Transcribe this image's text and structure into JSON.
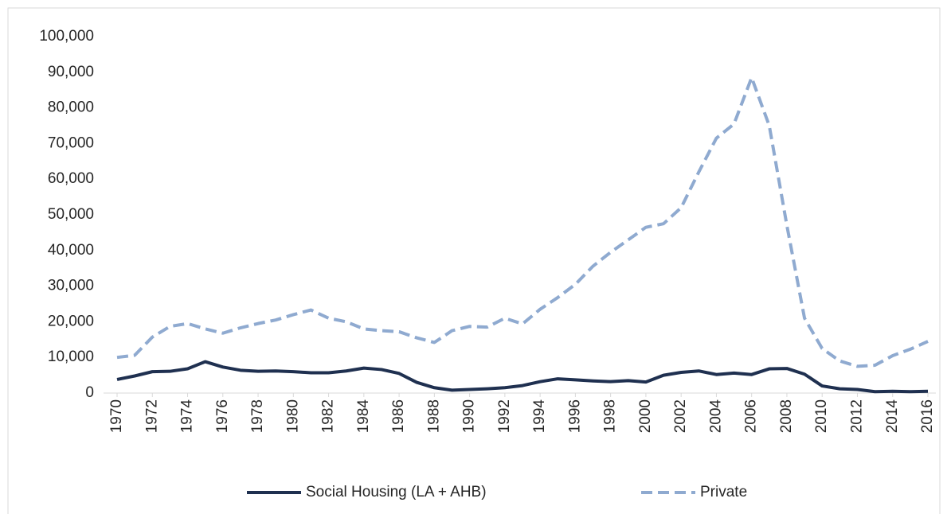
{
  "chart_data": {
    "type": "line",
    "x": [
      1970,
      1971,
      1972,
      1973,
      1974,
      1975,
      1976,
      1977,
      1978,
      1979,
      1980,
      1981,
      1982,
      1983,
      1984,
      1985,
      1986,
      1987,
      1988,
      1989,
      1990,
      1991,
      1992,
      1993,
      1994,
      1995,
      1996,
      1997,
      1998,
      1999,
      2000,
      2001,
      2002,
      2003,
      2004,
      2005,
      2006,
      2007,
      2008,
      2009,
      2010,
      2011,
      2012,
      2013,
      2014,
      2015,
      2016
    ],
    "xlim": [
      1970,
      2016
    ],
    "xticks": [
      1970,
      1972,
      1974,
      1976,
      1978,
      1980,
      1982,
      1984,
      1986,
      1988,
      1990,
      1992,
      1994,
      1996,
      1998,
      2000,
      2002,
      2004,
      2006,
      2008,
      2010,
      2012,
      2014,
      2016
    ],
    "ylim": [
      0,
      100000
    ],
    "yticks": [
      0,
      {
        "value": 10000,
        "label": "10,000"
      },
      {
        "value": 20000,
        "label": "20,000"
      },
      {
        "value": 30000,
        "label": "30,000"
      },
      {
        "value": 40000,
        "label": "40,000"
      },
      {
        "value": 50000,
        "label": "50,000"
      },
      {
        "value": 60000,
        "label": "60,000"
      },
      {
        "value": 70000,
        "label": "70,000"
      },
      {
        "value": 80000,
        "label": "80,000"
      },
      {
        "value": 90000,
        "label": "90,000"
      },
      {
        "value": 100000,
        "label": "100,000"
      }
    ],
    "grid": false,
    "legend": "bottom",
    "series": [
      {
        "name": "Social Housing (LA + AHB)",
        "color": "#1f3050",
        "dashed": false,
        "values": [
          3800,
          4800,
          6000,
          6100,
          6800,
          8800,
          7300,
          6400,
          6100,
          6200,
          6000,
          5700,
          5700,
          6200,
          7000,
          6600,
          5500,
          3000,
          1500,
          800,
          1000,
          1200,
          1500,
          2100,
          3200,
          4000,
          3700,
          3400,
          3200,
          3500,
          3100,
          5000,
          5800,
          6200,
          5200,
          5600,
          5200,
          6800,
          6900,
          5300,
          2000,
          1200,
          1000,
          400,
          500,
          400,
          500
        ]
      },
      {
        "name": "Private",
        "color": "#8faad0",
        "dashed": true,
        "values": [
          10000,
          10600,
          15700,
          18700,
          19500,
          18000,
          16800,
          18300,
          19500,
          20500,
          22000,
          23300,
          21000,
          20000,
          18000,
          17500,
          17200,
          15500,
          14200,
          17500,
          18700,
          18500,
          21000,
          19400,
          23500,
          26800,
          30500,
          35600,
          39500,
          43000,
          46500,
          47500,
          52000,
          62000,
          71500,
          75500,
          88500,
          75000,
          47000,
          21000,
          12500,
          9000,
          7500,
          7800,
          10500,
          12300,
          14500
        ]
      }
    ]
  }
}
